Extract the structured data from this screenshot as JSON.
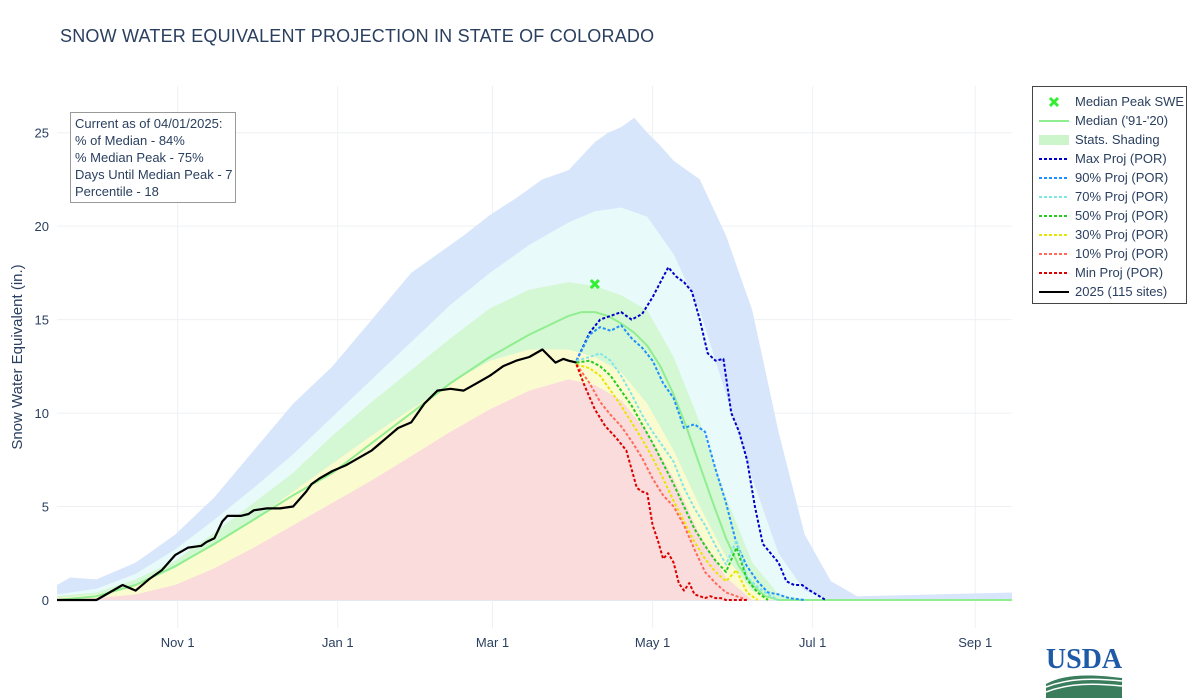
{
  "title": "SNOW WATER EQUIVALENT PROJECTION IN STATE OF COLORADO",
  "annotation": {
    "lines": [
      "Current as of 04/01/2025:",
      "% of Median - 84%",
      "% Median Peak - 75%",
      "Days Until Median Peak - 7",
      "Percentile - 18"
    ]
  },
  "legend": [
    {
      "label": "Median Peak SWE",
      "kind": "marker",
      "color": "#33ee33"
    },
    {
      "label": "Median ('91-'20)",
      "kind": "line",
      "color": "#90ee90"
    },
    {
      "label": "Stats. Shading",
      "kind": "fill",
      "color": "#ccf5cc"
    },
    {
      "label": "Max Proj (POR)",
      "kind": "dot",
      "color": "#0000cc"
    },
    {
      "label": "90% Proj (POR)",
      "kind": "dot",
      "color": "#1e90ff"
    },
    {
      "label": "70% Proj (POR)",
      "kind": "dot",
      "color": "#7fe6e6"
    },
    {
      "label": "50% Proj (POR)",
      "kind": "dot",
      "color": "#22cc22"
    },
    {
      "label": "30% Proj (POR)",
      "kind": "dot",
      "color": "#e6e600"
    },
    {
      "label": "10% Proj (POR)",
      "kind": "dot",
      "color": "#ff6b5a"
    },
    {
      "label": "Min Proj (POR)",
      "kind": "dot",
      "color": "#dd0000"
    },
    {
      "label": "2025 (115 sites)",
      "kind": "line",
      "color": "#000000"
    }
  ],
  "logo_text": "USDA",
  "chart_data": {
    "type": "line",
    "title": "SNOW WATER EQUIVALENT PROJECTION IN STATE OF COLORADO",
    "xlabel": "",
    "ylabel": "Snow Water Equivalent (in.)",
    "x_unit": "days since Oct 1",
    "xlim": [
      -15,
      349
    ],
    "ylim": [
      -1.5,
      27.5
    ],
    "xticks": [
      {
        "v": 31,
        "label": "Nov  1"
      },
      {
        "v": 92,
        "label": "Jan  1"
      },
      {
        "v": 151,
        "label": "Mar  1"
      },
      {
        "v": 212,
        "label": "May  1"
      },
      {
        "v": 273,
        "label": "Jul  1"
      },
      {
        "v": 335,
        "label": "Sep  1"
      }
    ],
    "yticks": [
      0,
      5,
      10,
      15,
      20,
      25
    ],
    "grid": true,
    "legend_position": "right",
    "bands": [
      {
        "name": "max-min",
        "color": "#d8e6fb",
        "x": [
          -15,
          -10,
          0,
          15,
          30,
          45,
          60,
          75,
          90,
          105,
          120,
          130,
          140,
          150,
          160,
          170,
          180,
          190,
          195,
          200,
          205,
          210,
          215,
          220,
          230,
          240,
          250,
          260,
          270,
          280,
          290,
          320,
          349
        ],
        "lower": [
          0,
          0,
          0,
          0,
          0,
          0,
          0,
          0,
          0,
          0,
          0,
          0,
          0,
          0,
          0,
          0,
          0,
          0,
          0,
          0,
          0,
          0,
          0,
          0,
          0,
          0,
          0,
          0,
          0,
          0,
          0,
          0,
          0
        ],
        "upper": [
          0.8,
          1.2,
          1.1,
          2.0,
          3.5,
          5.5,
          8.0,
          10.5,
          12.5,
          15.0,
          17.5,
          18.5,
          19.5,
          20.6,
          21.5,
          22.5,
          23.0,
          24.5,
          25.0,
          25.3,
          25.8,
          25.0,
          24.3,
          23.5,
          22.5,
          19.5,
          15.5,
          9.0,
          3.5,
          1.0,
          0.2,
          0.3,
          0.4
        ]
      },
      {
        "name": "90-10",
        "color": "#e8fafa",
        "x": [
          -15,
          0,
          15,
          30,
          45,
          60,
          75,
          90,
          105,
          120,
          135,
          150,
          165,
          180,
          190,
          200,
          210,
          220,
          230,
          240,
          250,
          260,
          270,
          280
        ],
        "lower": [
          0,
          0,
          0,
          0,
          0,
          0,
          0,
          0,
          0,
          0,
          0,
          0,
          0,
          0,
          0,
          0,
          0,
          0,
          0,
          0,
          0,
          0,
          0,
          0
        ],
        "upper": [
          0.3,
          0.6,
          1.4,
          2.7,
          4.3,
          6.0,
          7.8,
          9.8,
          11.8,
          13.8,
          15.8,
          17.5,
          19.0,
          20.2,
          20.8,
          21.0,
          20.5,
          18.5,
          15.5,
          11.0,
          6.5,
          2.5,
          0.5,
          0
        ]
      },
      {
        "name": "70-30",
        "color": "#d4f7d4",
        "x": [
          -15,
          0,
          15,
          30,
          45,
          60,
          75,
          90,
          105,
          120,
          135,
          150,
          165,
          180,
          190,
          200,
          210,
          220,
          230,
          240,
          250,
          260,
          270
        ],
        "lower": [
          0,
          0,
          0,
          0,
          0,
          0,
          0,
          0,
          0,
          0,
          0,
          0,
          0,
          0,
          0,
          0,
          0,
          0,
          0,
          0,
          0,
          0,
          0
        ],
        "upper": [
          0.2,
          0.4,
          1.1,
          2.1,
          3.6,
          5.2,
          6.8,
          8.8,
          10.6,
          12.3,
          14.0,
          15.6,
          16.6,
          17.0,
          16.8,
          16.3,
          15.5,
          13.0,
          9.5,
          5.5,
          2.0,
          0.3,
          0
        ]
      },
      {
        "name": "50-30",
        "color": "#fbfbd0",
        "x": [
          -15,
          0,
          15,
          30,
          45,
          60,
          75,
          90,
          105,
          120,
          135,
          150,
          165,
          180,
          190,
          200,
          210,
          220,
          230,
          240,
          250,
          260
        ],
        "lower": [
          0,
          0,
          0,
          0,
          0,
          0,
          0,
          0,
          0,
          0,
          0,
          0,
          0,
          0,
          0,
          0,
          0,
          0,
          0,
          0,
          0,
          0
        ],
        "upper": [
          0.1,
          0.3,
          0.8,
          1.7,
          3.0,
          4.3,
          5.8,
          7.3,
          8.8,
          10.2,
          11.6,
          12.8,
          13.4,
          13.4,
          13.0,
          12.2,
          10.5,
          8.0,
          5.0,
          2.3,
          0.5,
          0
        ]
      },
      {
        "name": "10-min",
        "color": "#fbdcdc",
        "x": [
          -15,
          0,
          15,
          30,
          45,
          60,
          75,
          90,
          105,
          120,
          135,
          150,
          165,
          180,
          190,
          200,
          210,
          220,
          230,
          240,
          250
        ],
        "lower": [
          0,
          0,
          0,
          0,
          0,
          0,
          0,
          0,
          0,
          0,
          0,
          0,
          0,
          0,
          0,
          0,
          0,
          0,
          0,
          0,
          0
        ],
        "upper": [
          0,
          0.1,
          0.3,
          0.8,
          1.7,
          2.8,
          4.0,
          5.2,
          6.4,
          7.7,
          9.0,
          10.2,
          11.2,
          11.8,
          11.5,
          10.7,
          9.0,
          6.5,
          3.5,
          1.2,
          0
        ]
      }
    ],
    "series": [
      {
        "name": "Median ('91-'20)",
        "color": "#90ee90",
        "width": 2,
        "dash": "",
        "x": [
          -15,
          0,
          15,
          30,
          45,
          60,
          75,
          90,
          105,
          120,
          135,
          150,
          165,
          180,
          185,
          190,
          195,
          200,
          205,
          210,
          215,
          220,
          225,
          230,
          235,
          240,
          245,
          250,
          255,
          260,
          270,
          349
        ],
        "y": [
          0,
          0.2,
          0.8,
          1.8,
          3.0,
          4.3,
          5.6,
          6.8,
          8.4,
          10.0,
          11.6,
          13.0,
          14.2,
          15.2,
          15.4,
          15.4,
          15.2,
          14.8,
          14.3,
          13.6,
          12.5,
          11.0,
          9.2,
          7.2,
          5.2,
          3.3,
          1.8,
          0.8,
          0.2,
          0,
          0,
          0
        ]
      },
      {
        "name": "Max Proj (POR)",
        "color": "#0000cc",
        "width": 2,
        "dash": "3,2",
        "x": [
          183,
          188,
          192,
          196,
          200,
          204,
          208,
          212,
          215,
          218,
          221,
          224,
          227,
          230,
          233,
          236,
          239,
          242,
          245,
          248,
          251,
          254,
          257,
          260,
          263,
          266,
          269,
          272,
          278
        ],
        "y": [
          12.8,
          14.3,
          15.0,
          15.2,
          15.4,
          15.0,
          15.3,
          16.2,
          17.0,
          17.8,
          17.3,
          17.0,
          16.5,
          15.0,
          13.2,
          12.8,
          12.9,
          10.0,
          9.0,
          7.5,
          5.0,
          3.0,
          2.5,
          2.0,
          1.0,
          0.8,
          0.8,
          0.5,
          0
        ]
      },
      {
        "name": "90% Proj (POR)",
        "color": "#1e90ff",
        "width": 2,
        "dash": "3,2",
        "x": [
          183,
          188,
          192,
          196,
          200,
          204,
          208,
          212,
          216,
          220,
          224,
          228,
          232,
          236,
          240,
          244,
          248,
          252,
          256,
          260,
          264,
          270
        ],
        "y": [
          12.8,
          14.2,
          14.6,
          14.4,
          14.7,
          14.0,
          13.5,
          12.8,
          11.6,
          10.8,
          9.2,
          9.4,
          9.0,
          7.0,
          5.2,
          3.0,
          1.8,
          1.0,
          0.4,
          0.3,
          0.1,
          0
        ]
      },
      {
        "name": "70% Proj (POR)",
        "color": "#7fe6e6",
        "width": 2,
        "dash": "3,2",
        "x": [
          183,
          188,
          192,
          196,
          200,
          204,
          208,
          212,
          216,
          220,
          224,
          228,
          232,
          236,
          240,
          244,
          248,
          252,
          256,
          260
        ],
        "y": [
          12.8,
          13.0,
          13.2,
          12.8,
          12.0,
          11.0,
          9.9,
          9.0,
          8.2,
          7.4,
          6.0,
          4.9,
          4.0,
          2.9,
          1.9,
          3.2,
          1.2,
          0.7,
          0.3,
          0
        ]
      },
      {
        "name": "50% Proj (POR)",
        "color": "#22cc22",
        "width": 2,
        "dash": "3,2",
        "x": [
          183,
          188,
          192,
          196,
          200,
          204,
          208,
          212,
          216,
          220,
          224,
          228,
          232,
          236,
          240,
          244,
          248,
          252,
          256
        ],
        "y": [
          12.7,
          12.8,
          12.5,
          12.0,
          11.2,
          10.4,
          9.4,
          8.4,
          7.3,
          6.2,
          5.0,
          3.8,
          2.9,
          2.1,
          1.5,
          2.8,
          1.1,
          0.4,
          0
        ]
      },
      {
        "name": "30% Proj (POR)",
        "color": "#e6e600",
        "width": 2,
        "dash": "3,2",
        "x": [
          183,
          188,
          192,
          196,
          200,
          204,
          208,
          212,
          216,
          220,
          224,
          228,
          232,
          236,
          240,
          244,
          248,
          252
        ],
        "y": [
          12.6,
          12.4,
          12.0,
          11.2,
          10.4,
          9.5,
          8.6,
          7.6,
          6.5,
          5.3,
          4.2,
          3.1,
          2.2,
          1.5,
          1.0,
          1.6,
          0.4,
          0
        ]
      },
      {
        "name": "10% Proj (POR)",
        "color": "#ff6b5a",
        "width": 2,
        "dash": "3,2",
        "x": [
          183,
          188,
          192,
          196,
          200,
          204,
          208,
          212,
          216,
          220,
          224,
          228,
          232,
          236,
          240,
          244,
          248
        ],
        "y": [
          12.6,
          11.6,
          10.6,
          9.9,
          9.3,
          8.5,
          7.6,
          6.5,
          5.6,
          5.0,
          4.0,
          2.7,
          1.5,
          0.9,
          0.4,
          0.2,
          0
        ]
      },
      {
        "name": "Min Proj (POR)",
        "color": "#dd0000",
        "width": 2,
        "dash": "3,2",
        "x": [
          183,
          186,
          190,
          194,
          198,
          202,
          206,
          208,
          210,
          212,
          214,
          216,
          218,
          220,
          222,
          224,
          226,
          228,
          230,
          232,
          234,
          236,
          238,
          240,
          244,
          248
        ],
        "y": [
          12.6,
          11.5,
          10.2,
          9.3,
          8.7,
          8.0,
          6.0,
          5.8,
          5.7,
          4.0,
          3.2,
          2.2,
          2.5,
          2.0,
          0.9,
          0.5,
          0.9,
          0.3,
          0.2,
          0.1,
          0.2,
          0.1,
          0.1,
          0,
          0,
          0
        ]
      },
      {
        "name": "2025 (115 sites)",
        "color": "#000000",
        "width": 2.2,
        "dash": "",
        "x": [
          -15,
          0,
          5,
          10,
          15,
          20,
          25,
          30,
          35,
          40,
          42,
          45,
          48,
          50,
          55,
          58,
          60,
          65,
          70,
          75,
          80,
          82,
          85,
          90,
          95,
          100,
          105,
          110,
          115,
          120,
          125,
          130,
          135,
          140,
          145,
          150,
          152,
          155,
          160,
          165,
          170,
          175,
          178,
          180,
          183
        ],
        "y": [
          0,
          0,
          0.4,
          0.8,
          0.5,
          1.1,
          1.6,
          2.4,
          2.8,
          2.9,
          3.1,
          3.3,
          4.2,
          4.5,
          4.5,
          4.6,
          4.8,
          4.9,
          4.9,
          5.0,
          5.8,
          6.2,
          6.5,
          6.9,
          7.2,
          7.6,
          8.0,
          8.6,
          9.2,
          9.5,
          10.5,
          11.2,
          11.3,
          11.2,
          11.6,
          12.0,
          12.2,
          12.5,
          12.8,
          13.0,
          13.4,
          12.7,
          12.9,
          12.8,
          12.7
        ]
      }
    ],
    "markers": [
      {
        "name": "Median Peak SWE",
        "x": 190,
        "y": 16.9,
        "color": "#33ee33",
        "symbol": "x"
      }
    ]
  }
}
